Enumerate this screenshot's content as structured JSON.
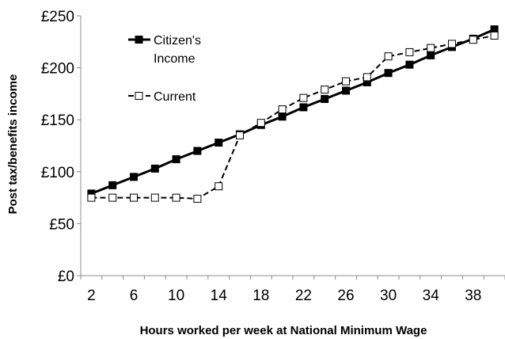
{
  "chart_data": {
    "type": "line",
    "title": "",
    "xlabel": "Hours worked per week at National Minimum Wage",
    "ylabel": "Post tax/benefits income",
    "xlim": [
      1,
      41
    ],
    "ylim": [
      0,
      250
    ],
    "x_ticks": [
      2,
      6,
      10,
      14,
      18,
      22,
      26,
      30,
      34,
      38
    ],
    "y_ticks": [
      {
        "value": 0,
        "label": "£0"
      },
      {
        "value": 50,
        "label": "£50"
      },
      {
        "value": 100,
        "label": "£100"
      },
      {
        "value": 150,
        "label": "£150"
      },
      {
        "value": 200,
        "label": "£200"
      },
      {
        "value": 250,
        "label": "£250"
      }
    ],
    "grid": false,
    "legend": {
      "placement": "top-left",
      "line1": "Citizen's",
      "line2": "Income",
      "current": "Current"
    },
    "x": [
      2,
      4,
      6,
      8,
      10,
      12,
      14,
      16,
      18,
      20,
      22,
      24,
      26,
      28,
      30,
      32,
      34,
      36,
      38,
      40
    ],
    "series": [
      {
        "name": "Citizen's Income",
        "style": "solid",
        "marker": "filled-square",
        "color": "#000000",
        "values": [
          79,
          87,
          95,
          103,
          112,
          120,
          128,
          136,
          145,
          153,
          162,
          170,
          178,
          186,
          195,
          203,
          212,
          220,
          228,
          237
        ]
      },
      {
        "name": "Current",
        "style": "dashed",
        "marker": "open-square",
        "color": "#000000",
        "values": [
          75,
          75,
          75,
          75,
          75,
          74,
          86,
          135,
          147,
          160,
          171,
          179,
          187,
          191,
          211,
          215,
          219,
          223,
          227,
          231
        ]
      }
    ]
  }
}
